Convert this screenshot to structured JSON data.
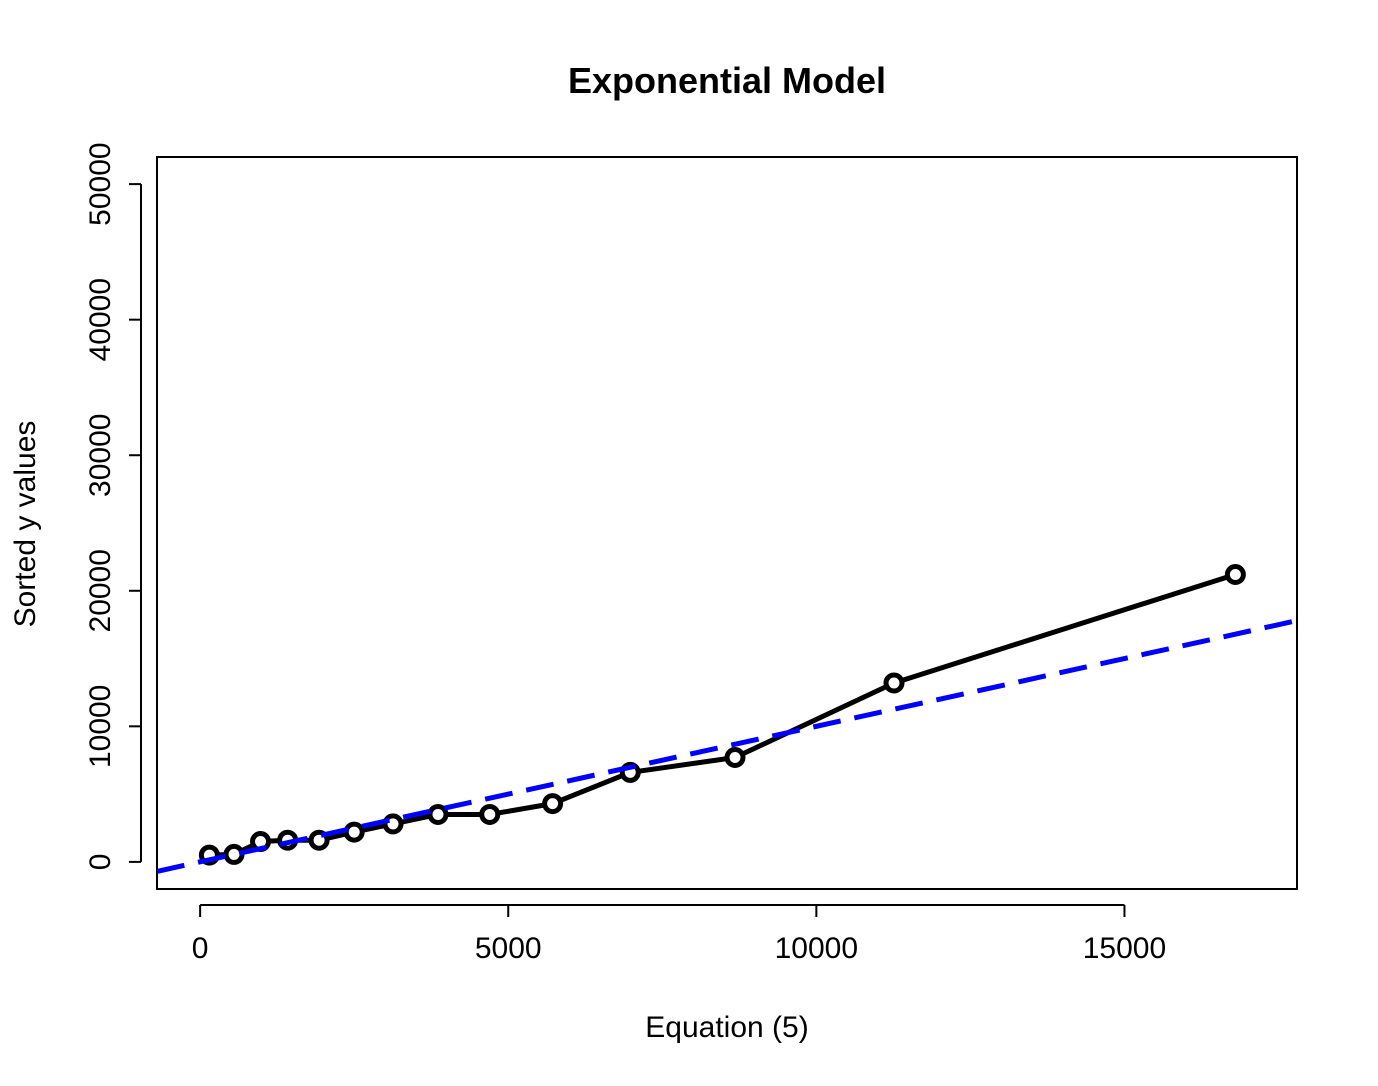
{
  "chart_data": {
    "type": "line",
    "title": "Exponential Model",
    "xlabel": "Equation (5)",
    "ylabel": "Sorted y values",
    "xlim": [
      -700,
      17800
    ],
    "ylim": [
      -2000,
      52000
    ],
    "x_ticks": [
      0,
      5000,
      10000,
      15000
    ],
    "y_ticks": [
      0,
      10000,
      20000,
      30000,
      40000,
      50000
    ],
    "x_tick_labels": [
      "0",
      "5000",
      "10000",
      "15000"
    ],
    "y_tick_labels": [
      "0",
      "10000",
      "20000",
      "30000",
      "40000",
      "50000"
    ],
    "grid": false,
    "series": [
      {
        "style": "solid-with-circles",
        "color": "#000000",
        "x": [
          150,
          550,
          980,
          1420,
          1930,
          2500,
          3130,
          3860,
          4700,
          5720,
          6980,
          8680,
          11260,
          16800
        ],
        "y": [
          500,
          550,
          1500,
          1600,
          1600,
          2200,
          2800,
          3500,
          3500,
          4300,
          6600,
          7700,
          13200,
          21200
        ]
      },
      {
        "style": "dashed-line",
        "color": "#0000ff",
        "x": [
          -700,
          17800
        ],
        "y": [
          -700,
          17800
        ]
      }
    ]
  }
}
